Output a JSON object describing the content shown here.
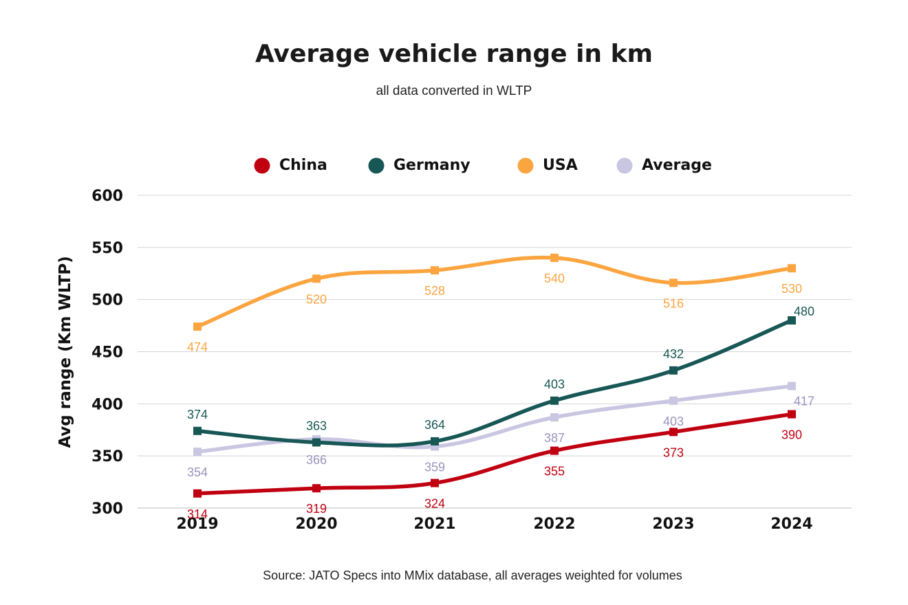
{
  "chart_data": {
    "type": "line",
    "title": "Average vehicle range in km",
    "subtitle": "all data converted in WLTP",
    "ylabel": "Avg range (Km WLTP)",
    "xlabel": "",
    "x": [
      "2019",
      "2020",
      "2021",
      "2022",
      "2023",
      "2024"
    ],
    "ylim": [
      300,
      600
    ],
    "yticks": [
      "300",
      "350",
      "400",
      "450",
      "500",
      "550",
      "600"
    ],
    "grid": true,
    "legend_position": "top",
    "series": [
      {
        "name": "China",
        "color": "#c00010",
        "values": [
          314,
          319,
          324,
          355,
          373,
          390
        ],
        "label_pos": "below"
      },
      {
        "name": "Germany",
        "color": "#175755",
        "values": [
          374,
          363,
          364,
          403,
          432,
          480
        ],
        "label_pos": "above"
      },
      {
        "name": "USA",
        "color": "#fba540",
        "values": [
          474,
          520,
          528,
          540,
          516,
          530
        ],
        "label_pos": "below"
      },
      {
        "name": "Average",
        "color": "#c9c6e2",
        "label_color": "#9a93bf",
        "values": [
          354,
          366,
          359,
          387,
          403,
          417
        ],
        "label_pos": "below"
      }
    ],
    "source": "Source: JATO Specs into MMix database, all averages weighted for volumes"
  }
}
